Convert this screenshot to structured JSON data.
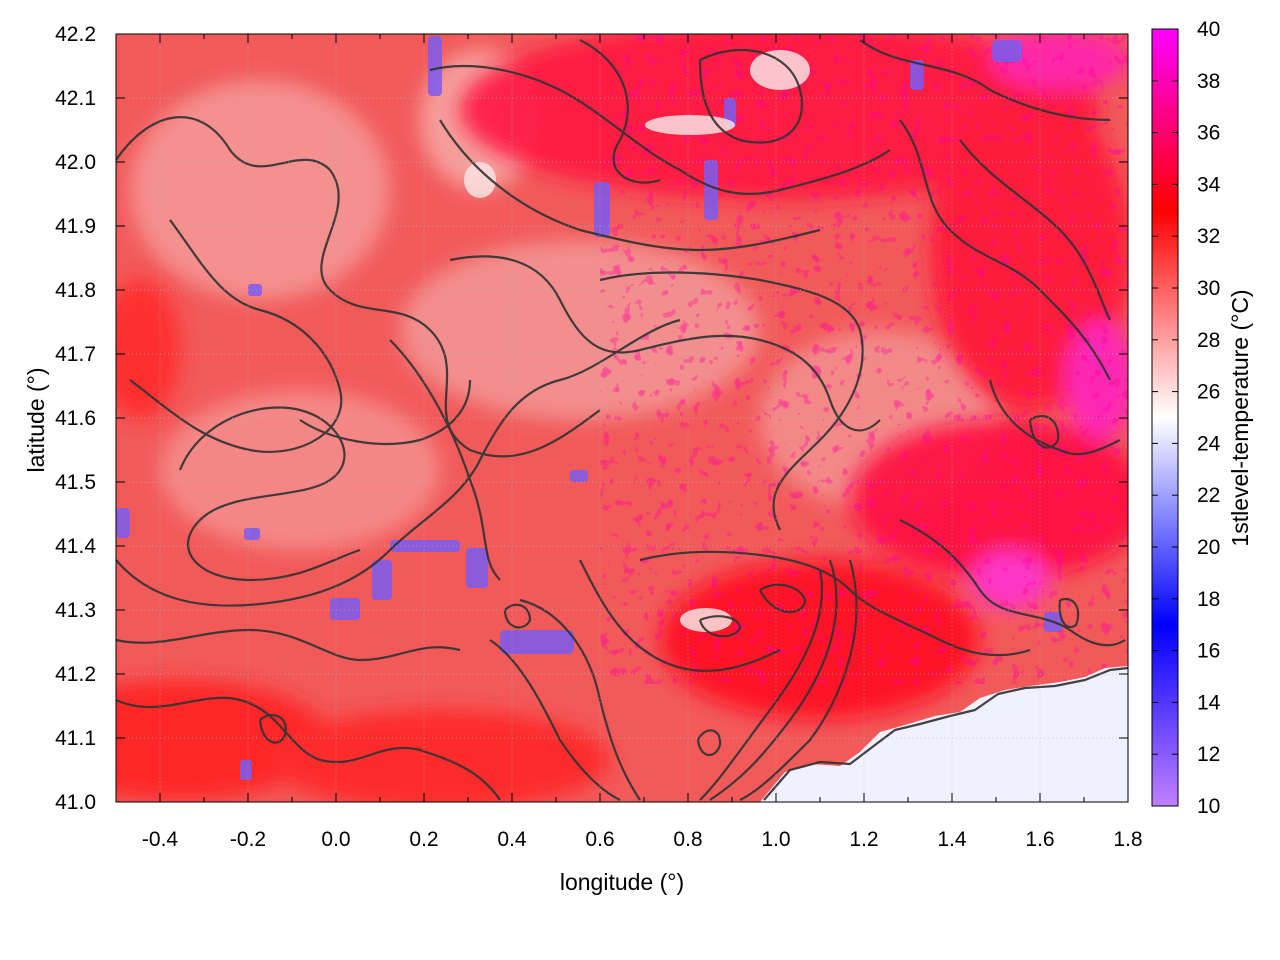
{
  "chart_data": {
    "type": "heatmap",
    "title": "",
    "xlabel": "longitude (°)",
    "ylabel": "latitude (°)",
    "colorbar_label": "1stlevel-temperature (°C)",
    "xlim": [
      -0.5,
      1.8
    ],
    "ylim": [
      41.0,
      42.2
    ],
    "x_ticks": [
      "-0.4",
      "-0.2",
      "0.0",
      "0.2",
      "0.4",
      "0.6",
      "0.8",
      "1.0",
      "1.2",
      "1.4",
      "1.6",
      "1.8"
    ],
    "y_ticks": [
      "41.0",
      "41.1",
      "41.2",
      "41.3",
      "41.4",
      "41.5",
      "41.6",
      "41.7",
      "41.8",
      "41.9",
      "42.0",
      "42.1",
      "42.2"
    ],
    "colorbar_range": [
      10,
      40
    ],
    "colorbar_ticks": [
      "10",
      "12",
      "14",
      "16",
      "18",
      "20",
      "22",
      "24",
      "26",
      "28",
      "30",
      "32",
      "34",
      "36",
      "38",
      "40"
    ],
    "colormap": [
      {
        "value": 10,
        "color": "#c080ff"
      },
      {
        "value": 17,
        "color": "#0000ff"
      },
      {
        "value": 25,
        "color": "#ffffff"
      },
      {
        "value": 33,
        "color": "#ff0000"
      },
      {
        "value": 40,
        "color": "#ff00ff"
      }
    ],
    "grid": true,
    "contour_color": "#333333",
    "sea_color": "#f0f0ff"
  }
}
